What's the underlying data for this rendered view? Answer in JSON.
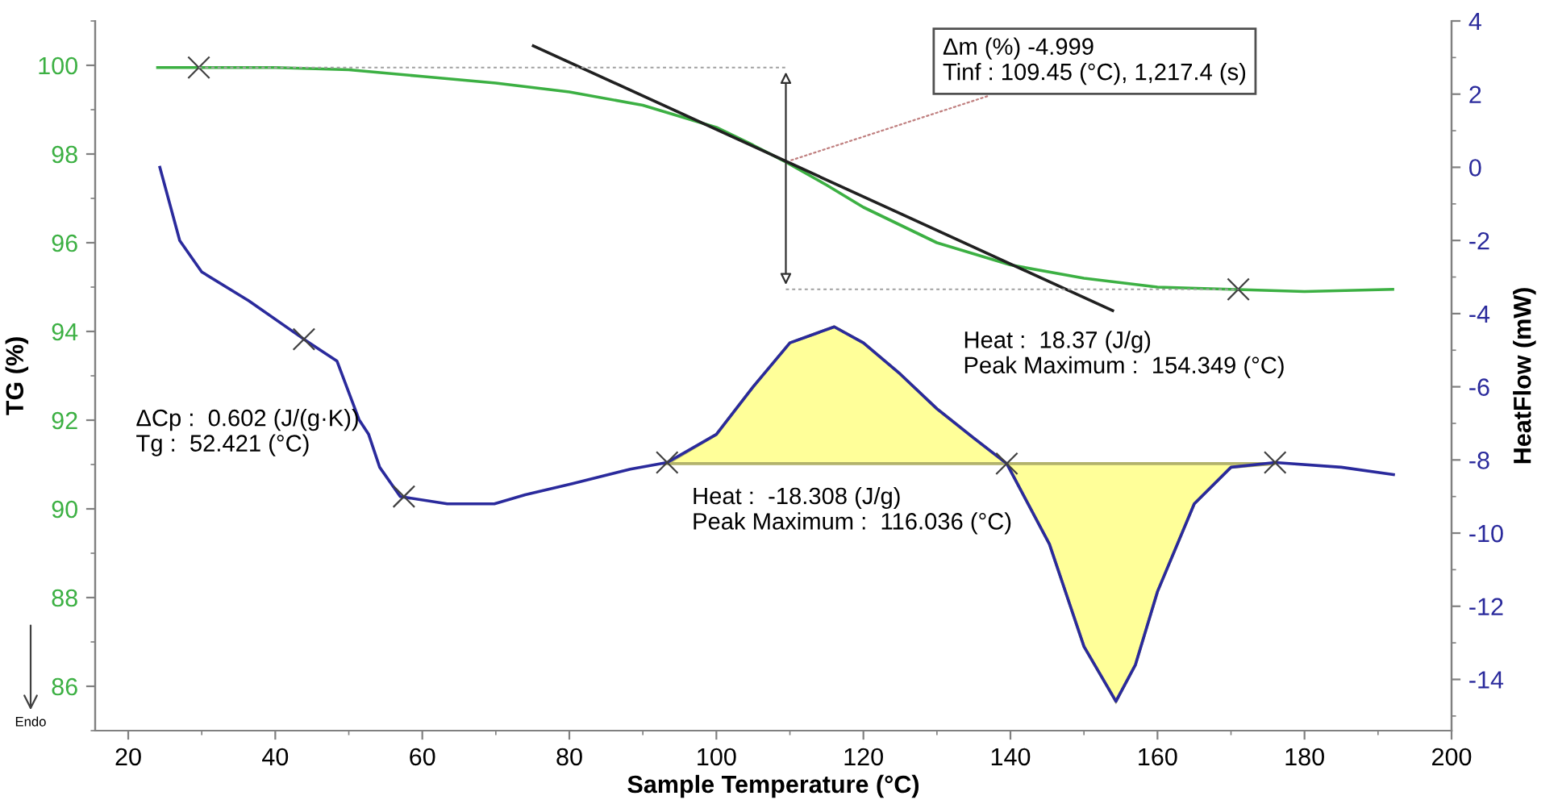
{
  "chart_data": {
    "type": "line",
    "xlabel": "Sample Temperature (°C)",
    "ylabel": "TG (%)",
    "y2label": "HeatFlow (mW)",
    "xlim": [
      15.5,
      200
    ],
    "xticks": [
      20,
      40,
      60,
      80,
      100,
      120,
      140,
      160,
      180,
      200
    ],
    "ylim": [
      85,
      101
    ],
    "yticks": [
      86,
      88,
      90,
      92,
      94,
      96,
      98,
      100
    ],
    "y2lim": [
      -15.4,
      4
    ],
    "y2ticks": [
      -14,
      -12,
      -10,
      -8,
      -6,
      -4,
      -2,
      0,
      2,
      4
    ],
    "grid": false,
    "legend": false,
    "line_style": "solid",
    "marker": "none",
    "series": [
      {
        "type": "area",
        "axis": "y2",
        "color": "#ffff99",
        "x": [
          93.3,
          100,
          105,
          110,
          116.036,
          120,
          125,
          130,
          135,
          139.5,
          145.3,
          150,
          154.349,
          157,
          160,
          165,
          170,
          176
        ],
        "values": [
          -8.1,
          -7.3,
          -6.0,
          -4.8,
          -4.36,
          -4.8,
          -5.65,
          -6.6,
          -7.4,
          -8.1,
          -10.3,
          -13.1,
          -14.6,
          -13.6,
          -11.6,
          -9.2,
          -8.2,
          -8.1
        ]
      },
      {
        "axis": "y2",
        "color": "#2a2a9c",
        "x": [
          24.3,
          27,
          30,
          36.4,
          43.9,
          48.4,
          51.4,
          52.7,
          54.2,
          57,
          63.4,
          67.6,
          69.8,
          74,
          80.4,
          88.3,
          93.3,
          100,
          105,
          110,
          116.036,
          120,
          125,
          130,
          135,
          139.5,
          145.3,
          150,
          154.349,
          157,
          160,
          165,
          170,
          176,
          185,
          192.1
        ],
        "values": [
          0.0,
          -2.0,
          -2.86,
          -3.65,
          -4.7,
          -5.3,
          -6.9,
          -7.3,
          -8.2,
          -9.0,
          -9.2,
          -9.2,
          -9.2,
          -8.95,
          -8.65,
          -8.25,
          -8.07,
          -7.3,
          -6.0,
          -4.8,
          -4.36,
          -4.8,
          -5.65,
          -6.6,
          -7.4,
          -8.1,
          -10.3,
          -13.1,
          -14.6,
          -13.6,
          -11.6,
          -9.2,
          -8.2,
          -8.07,
          -8.2,
          -8.4
        ]
      },
      {
        "color": "#3cb043",
        "x": [
          24,
          30,
          40,
          50,
          60,
          70,
          80,
          90,
          100,
          105,
          109.45,
          115,
          120,
          130,
          140,
          150,
          160,
          170,
          180,
          192
        ],
        "values": [
          99.95,
          99.95,
          99.95,
          99.9,
          99.75,
          99.6,
          99.4,
          99.1,
          98.6,
          98.2,
          97.82,
          97.3,
          96.8,
          96.0,
          95.5,
          95.2,
          95.0,
          94.95,
          94.9,
          94.95
        ]
      },
      {
        "color": "#202020",
        "x": [
          75.1,
          153.9
        ],
        "values": [
          100.44,
          94.47
        ]
      },
      {
        "color": "#a0a0a0",
        "line_style": "dashed",
        "x": [
          29.6,
          109.45
        ],
        "values": [
          99.95,
          99.95
        ]
      },
      {
        "color": "#a0a0a0",
        "line_style": "dashed",
        "x": [
          109.45,
          171
        ],
        "values": [
          94.95,
          94.95
        ]
      },
      {
        "type": "scatter",
        "marker": "cross",
        "color": "#404040",
        "x": [
          29.6,
          171
        ],
        "values": [
          99.95,
          94.95
        ]
      },
      {
        "type": "scatter",
        "axis": "y2",
        "marker": "cross",
        "color": "#404040",
        "x": [
          43.9,
          57.5,
          93.3,
          139.5,
          176
        ],
        "values": [
          -4.7,
          -9.0,
          -8.07,
          -8.1,
          -8.07
        ]
      }
    ],
    "annotations": [
      {
        "text": "Δm (%) -4.999\nTinf : 109.45 (°C), 1,217.4 (s)",
        "x": 109.45,
        "y": 97.82
      },
      "ΔCp :  0.602 (J/(g·K))\nTg :  52.421 (°C)",
      "Heat :  -18.308 (J/g)\nPeak Maximum :  116.036 (°C)",
      "Heat :  18.37 (J/g)\nPeak Maximum :  154.349 (°C)",
      "Endo"
    ]
  }
}
